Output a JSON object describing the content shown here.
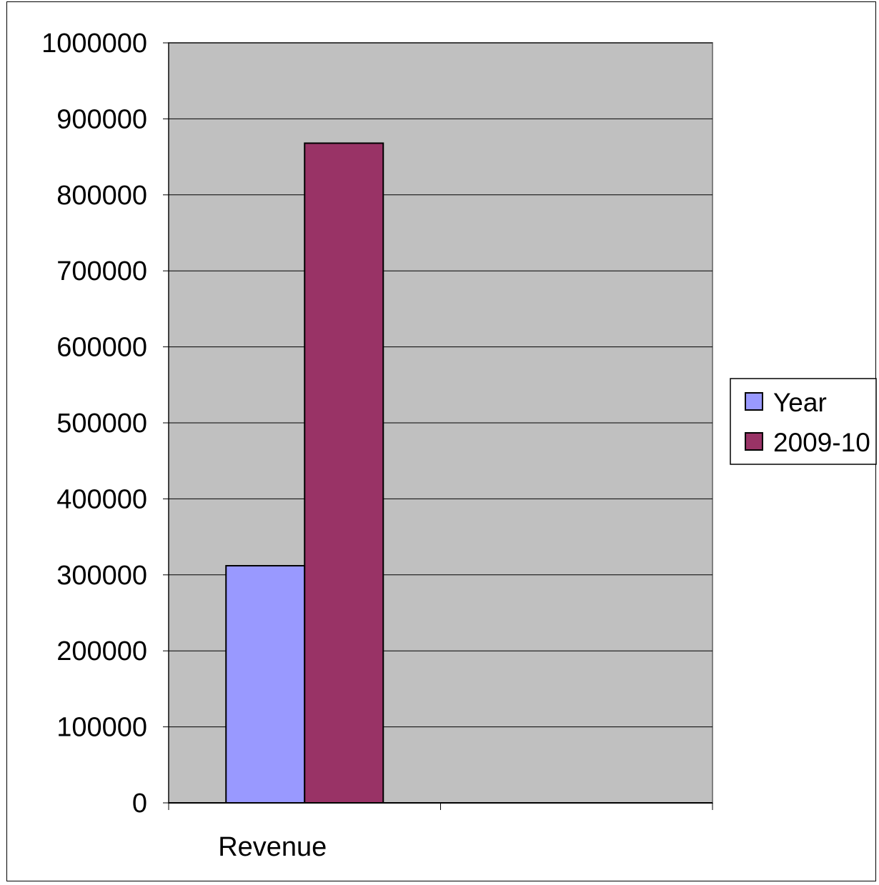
{
  "chart_data": {
    "type": "bar",
    "categories": [
      "Revenue",
      ""
    ],
    "series": [
      {
        "name": "Year",
        "values": [
          312000,
          null
        ],
        "color": "#9999ff"
      },
      {
        "name": "2009-10",
        "values": [
          868000,
          null
        ],
        "color": "#993366"
      }
    ],
    "ylim": [
      0,
      1000000
    ],
    "yticks": [
      0,
      100000,
      200000,
      300000,
      400000,
      500000,
      600000,
      700000,
      800000,
      900000,
      1000000
    ],
    "ytick_labels": [
      "0",
      "100000",
      "200000",
      "300000",
      "400000",
      "500000",
      "600000",
      "700000",
      "800000",
      "900000",
      "1000000"
    ],
    "grid": true,
    "legend_position": "right",
    "plot_background": "#c0c0c0",
    "gridline_color": "#000000"
  }
}
